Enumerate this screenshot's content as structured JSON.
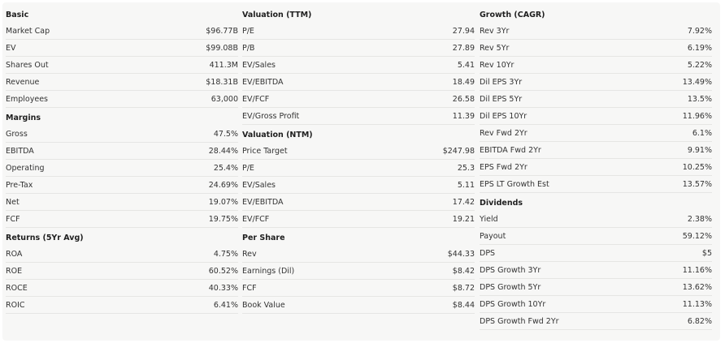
{
  "col1": {
    "basic": {
      "title": "Basic",
      "rows": [
        {
          "label": "Market Cap",
          "value": "$96.77B"
        },
        {
          "label": "EV",
          "value": "$99.08B"
        },
        {
          "label": "Shares Out",
          "value": "411.3M"
        },
        {
          "label": "Revenue",
          "value": "$18.31B"
        },
        {
          "label": "Employees",
          "value": "63,000"
        }
      ]
    },
    "margins": {
      "title": "Margins",
      "rows": [
        {
          "label": "Gross",
          "value": "47.5%"
        },
        {
          "label": "EBITDA",
          "value": "28.44%"
        },
        {
          "label": "Operating",
          "value": "25.4%"
        },
        {
          "label": "Pre-Tax",
          "value": "24.69%"
        },
        {
          "label": "Net",
          "value": "19.07%"
        },
        {
          "label": "FCF",
          "value": "19.75%"
        }
      ]
    },
    "returns": {
      "title": "Returns (5Yr Avg)",
      "rows": [
        {
          "label": "ROA",
          "value": "4.75%"
        },
        {
          "label": "ROE",
          "value": "60.52%"
        },
        {
          "label": "ROCE",
          "value": "40.33%"
        },
        {
          "label": "ROIC",
          "value": "6.41%"
        }
      ]
    }
  },
  "col2": {
    "valuation_ttm": {
      "title": "Valuation (TTM)",
      "rows": [
        {
          "label": "P/E",
          "value": "27.94"
        },
        {
          "label": "P/B",
          "value": "27.89"
        },
        {
          "label": "EV/Sales",
          "value": "5.41"
        },
        {
          "label": "EV/EBITDA",
          "value": "18.49"
        },
        {
          "label": "EV/FCF",
          "value": "26.58"
        },
        {
          "label": "EV/Gross Profit",
          "value": "11.39"
        }
      ]
    },
    "valuation_ntm": {
      "title": "Valuation (NTM)",
      "rows": [
        {
          "label": "Price Target",
          "value": "$247.98"
        },
        {
          "label": "P/E",
          "value": "25.3"
        },
        {
          "label": "EV/Sales",
          "value": "5.11"
        },
        {
          "label": "EV/EBITDA",
          "value": "17.42"
        },
        {
          "label": "EV/FCF",
          "value": "19.21"
        }
      ]
    },
    "per_share": {
      "title": "Per Share",
      "rows": [
        {
          "label": "Rev",
          "value": "$44.33"
        },
        {
          "label": "Earnings (Dil)",
          "value": "$8.42"
        },
        {
          "label": "FCF",
          "value": "$8.72"
        },
        {
          "label": "Book Value",
          "value": "$8.44"
        }
      ]
    }
  },
  "col3": {
    "growth": {
      "title": "Growth (CAGR)",
      "rows": [
        {
          "label": "Rev 3Yr",
          "value": "7.92%"
        },
        {
          "label": "Rev 5Yr",
          "value": "6.19%"
        },
        {
          "label": "Rev 10Yr",
          "value": "5.22%"
        },
        {
          "label": "Dil EPS 3Yr",
          "value": "13.49%"
        },
        {
          "label": "Dil EPS 5Yr",
          "value": "13.5%"
        },
        {
          "label": "Dil EPS 10Yr",
          "value": "11.96%"
        },
        {
          "label": "Rev Fwd 2Yr",
          "value": "6.1%"
        },
        {
          "label": "EBITDA Fwd 2Yr",
          "value": "9.91%"
        },
        {
          "label": "EPS Fwd 2Yr",
          "value": "10.25%"
        },
        {
          "label": "EPS LT Growth Est",
          "value": "13.57%"
        }
      ]
    },
    "dividends": {
      "title": "Dividends",
      "rows": [
        {
          "label": "Yield",
          "value": "2.38%"
        },
        {
          "label": "Payout",
          "value": "59.12%"
        },
        {
          "label": "DPS",
          "value": "$5"
        },
        {
          "label": "DPS Growth 3Yr",
          "value": "11.16%"
        },
        {
          "label": "DPS Growth 5Yr",
          "value": "13.62%"
        },
        {
          "label": "DPS Growth 10Yr",
          "value": "11.13%"
        },
        {
          "label": "DPS Growth Fwd 2Yr",
          "value": "6.82%"
        }
      ]
    }
  }
}
